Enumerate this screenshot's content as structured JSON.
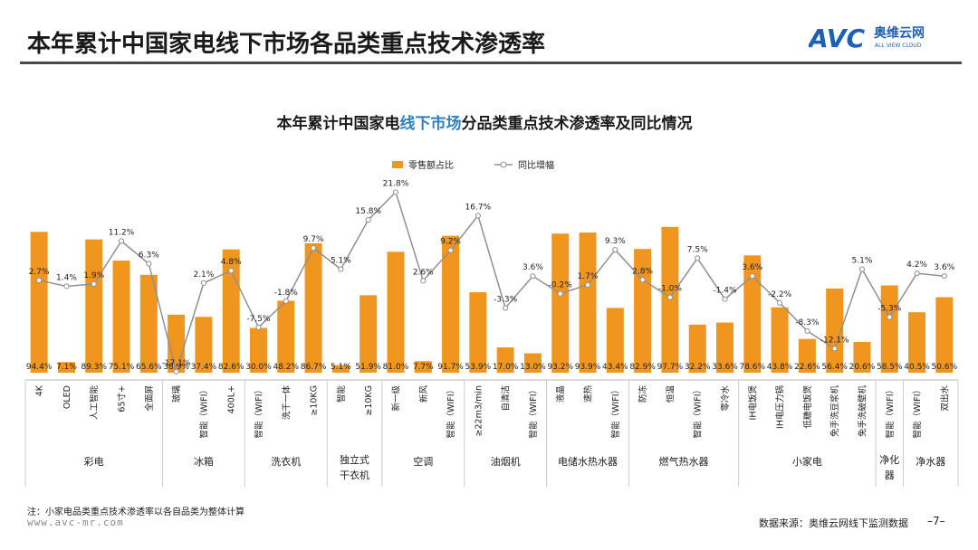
{
  "header": {
    "title": "本年累计中国家电线下市场各品类重点技术渗透率",
    "logo_text": "AVC",
    "logo_cn": "奥维云网",
    "logo_en": "ALL VIEW CLOUD"
  },
  "footer": {
    "note": "注：小家电品类重点技术渗透率以各自品类为整体计算",
    "website": "www.avc-mr.com",
    "source": "数据来源：奥维云网线下监测数据",
    "page": "–7–"
  },
  "colors": {
    "bar": "#f0961e",
    "line": "#909090",
    "title_accent": "#2f7fc1"
  },
  "chart_data": {
    "type": "bar",
    "title_parts": [
      "本年累计中国家电",
      "线下市场",
      "分品类重点技术渗透率及同比情况"
    ],
    "legend": [
      "零售额占比",
      "同比增幅"
    ],
    "legend_position": "top",
    "grid": false,
    "categories": [
      "4K",
      "OLED",
      "人工智能",
      "65寸+",
      "全面屏",
      "玻璃",
      "智能（WIFI）",
      "400L+",
      "智能（WIFI）",
      "洗干一体",
      "≥10KG",
      "智能",
      "≥10KG",
      "新一级",
      "新风",
      "智能（WIFI）",
      "≥22m3/min",
      "自清洁",
      "智能（WIFI）",
      "液晶",
      "速热",
      "智能（WIFI）",
      "防冻",
      "恒温",
      "智能（WIFI）",
      "零冷水",
      "IH电饭煲",
      "IH电压力锅",
      "低糖电饭煲",
      "免手洗豆浆机",
      "免手洗破壁机",
      "智能（WIFI）",
      "智能（WIFI）",
      "双出水"
    ],
    "series": [
      {
        "name": "零售额占比",
        "type": "bar",
        "unit": "%",
        "values": [
          94.4,
          7.1,
          89.3,
          75.1,
          65.6,
          38.9,
          37.4,
          82.6,
          30.0,
          48.2,
          86.7,
          5.1,
          51.9,
          81.0,
          7.7,
          91.7,
          53.9,
          17.0,
          13.0,
          93.2,
          93.9,
          43.4,
          82.9,
          97.7,
          32.2,
          33.6,
          78.6,
          43.8,
          22.6,
          56.4,
          20.6,
          58.5,
          40.5,
          50.6
        ],
        "labels": [
          "94.4%",
          "7.1%",
          "89.3%",
          "75.1%",
          "65.6%",
          "38.9%",
          "37.4%",
          "82.6%",
          "30.0%",
          "48.2%",
          "86.7%",
          "5.1%",
          "51.9%",
          "81.0%",
          "7.7%",
          "91.7%",
          "53.9%",
          "17.0%",
          "13.0%",
          "93.2%",
          "93.9%",
          "43.4%",
          "82.9%",
          "97.7%",
          "32.2%",
          "33.6%",
          "78.6%",
          "43.8%",
          "22.6%",
          "56.4%",
          "20.6%",
          "58.5%",
          "40.5%",
          "50.6%"
        ]
      },
      {
        "name": "同比增幅",
        "type": "line",
        "unit": "%",
        "values": [
          2.7,
          1.4,
          1.9,
          11.2,
          6.3,
          -17.1,
          2.1,
          4.8,
          -7.5,
          -1.8,
          9.7,
          5.1,
          15.8,
          21.8,
          2.6,
          9.2,
          16.7,
          -3.3,
          3.6,
          -0.2,
          1.7,
          9.3,
          2.8,
          -1.0,
          7.5,
          -1.4,
          3.6,
          -2.2,
          -8.3,
          -12.1,
          5.1,
          -5.3,
          4.2,
          3.6
        ],
        "labels": [
          "2.7%",
          "1.4%",
          "1.9%",
          "11.2%",
          "6.3%",
          "-17.1%",
          "2.1%",
          "4.8%",
          "-7.5%",
          "-1.8%",
          "9.7%",
          "5.1%",
          "15.8%",
          "21.8%",
          "2.6%",
          "9.2%",
          "16.7%",
          "-3.3%",
          "3.6%",
          "-0.2%",
          "1.7%",
          "9.3%",
          "2.8%",
          "-1.0%",
          "7.5%",
          "-1.4%",
          "3.6%",
          "-2.2%",
          "-8.3%",
          "-12.1%",
          "5.1%",
          "-5.3%",
          "4.2%",
          "3.6%"
        ]
      }
    ],
    "groups": [
      {
        "name": [
          "彩电"
        ],
        "count": 5
      },
      {
        "name": [
          "冰箱"
        ],
        "count": 3
      },
      {
        "name": [
          "洗衣机"
        ],
        "count": 3
      },
      {
        "name": [
          "独立式",
          "干衣机"
        ],
        "count": 2
      },
      {
        "name": [
          "空调"
        ],
        "count": 3
      },
      {
        "name": [
          "油烟机"
        ],
        "count": 3
      },
      {
        "name": [
          "电储水热水器"
        ],
        "count": 3
      },
      {
        "name": [
          "燃气热水器"
        ],
        "count": 4
      },
      {
        "name": [
          "小家电"
        ],
        "count": 5
      },
      {
        "name": [
          "净化",
          "器"
        ],
        "count": 1
      },
      {
        "name": [
          "净水器"
        ],
        "count": 2
      }
    ]
  }
}
